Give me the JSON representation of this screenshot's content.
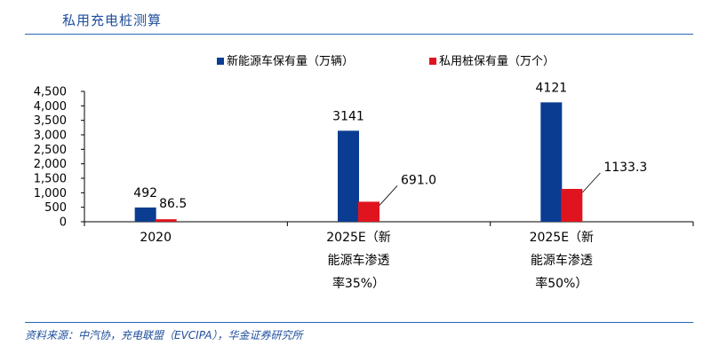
{
  "header": {
    "title": "私用充电桩测算"
  },
  "source": "资料来源：中汽协，充电联盟（EVCIPA），华金证券研究所",
  "chart_data": {
    "type": "bar",
    "title": "",
    "xlabel": "",
    "ylabel": "",
    "ylim": [
      0,
      4500
    ],
    "yticks": [
      0,
      500,
      1000,
      1500,
      2000,
      2500,
      3000,
      3500,
      4000,
      4500
    ],
    "ytick_labels": [
      "0",
      "500",
      "1,000",
      "1,500",
      "2,000",
      "2,500",
      "3,000",
      "3,500",
      "4,000",
      "4,500"
    ],
    "grid": false,
    "legend": "top-center",
    "categories": [
      [
        "2020"
      ],
      [
        "2025E（新",
        "能源车渗透",
        "率35%）"
      ],
      [
        "2025E（新",
        "能源车渗透",
        "率50%）"
      ]
    ],
    "series": [
      {
        "name": "新能源车保有量（万辆）",
        "color": "#0a3d91",
        "values": [
          492,
          3141,
          4121
        ],
        "labels": [
          "492",
          "3141",
          "4121"
        ]
      },
      {
        "name": "私用桩保有量（万个）",
        "color": "#e0141e",
        "values": [
          86.5,
          691.0,
          1133.3
        ],
        "labels": [
          "86.5",
          "691.0",
          "1133.3"
        ]
      }
    ]
  }
}
